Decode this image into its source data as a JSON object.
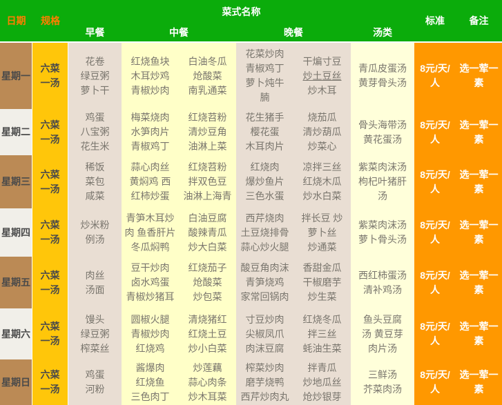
{
  "header": {
    "date": "日期",
    "spec": "规格",
    "dishes": "菜式名称",
    "meals": [
      "早餐",
      "中餐",
      "晚餐",
      "汤类"
    ],
    "standard": "标准",
    "remark": "备注"
  },
  "colors": {
    "header_green": "#0bac0b",
    "header_label_orange": "#ff7e00",
    "date_brown": "#bb8a55",
    "date_light": "#f1efe9",
    "spec_yellow": "#ffc60a",
    "beige_column": "#e9ded3",
    "pale_yellow_column": "#ffffc8",
    "soup_column": "#ffffda",
    "orange_column": "#ff9800",
    "dish_text": "#79756d"
  },
  "rows": [
    {
      "day": "星期一",
      "spec_lines": [
        "六菜",
        "一汤"
      ],
      "breakfast": [
        "花卷",
        "绿豆粥",
        "萝卜干"
      ],
      "lunch1": [
        "红烧鱼块",
        "木耳炒鸡",
        "青椒炒肉"
      ],
      "lunch2": [
        "白油冬瓜",
        "炝酸菜",
        "南乳通菜"
      ],
      "dinner1": [
        "花菜炒肉",
        "青椒鸡丁",
        "萝卜炖牛",
        "腩"
      ],
      "dinner2": [
        "干煸寸豆",
        {
          "t": "炒土豆丝",
          "u": true
        },
        "炒木耳"
      ],
      "soup": [
        "青瓜皮蛋汤",
        "黄芽骨头汤"
      ],
      "standard": "8元/天/人",
      "remark": "选一荤一素"
    },
    {
      "day": "星期二",
      "spec_lines": [
        "六菜",
        "一汤"
      ],
      "breakfast": [
        "鸡蛋",
        "八宝粥",
        "花生米"
      ],
      "lunch1": [
        "梅菜烧肉",
        "水笋肉片",
        "青椒鸡丁"
      ],
      "lunch2": [
        "红烧苕粉",
        "清炒豆角",
        "油淋上菜"
      ],
      "dinner1": [
        "花生猪手",
        "樱花蛋",
        "木耳肉片"
      ],
      "dinner2": [
        "烧茄瓜",
        "清炒葫瓜",
        "炒菜心"
      ],
      "soup": [
        "骨头海带汤",
        "黄花蛋汤"
      ],
      "standard": "8元/天/人",
      "remark": "选一荤一素"
    },
    {
      "day": "星期三",
      "spec_lines": [
        "六菜",
        "一汤"
      ],
      "breakfast": [
        "稀饭",
        "菜包",
        "咸菜"
      ],
      "lunch1": [
        "蒜心肉丝",
        "黄焖鸡 西",
        "红柿炒蛋"
      ],
      "lunch2": [
        "红烧苕粉",
        "拌双色豆",
        "油淋上海青"
      ],
      "dinner1": [
        "红烧肉",
        "爆炒鱼片",
        "三色水蛋"
      ],
      "dinner2": [
        "凉拌三丝",
        "红烧木瓜",
        "炒水白菜"
      ],
      "soup": [
        "紫菜肉沫汤",
        "枸杞叶猪肝",
        "汤"
      ],
      "standard": "8元/天/人",
      "remark": "选一荤一素"
    },
    {
      "day": "星期四",
      "spec_lines": [
        "六菜",
        "一汤"
      ],
      "breakfast": [
        "炒米粉",
        "例汤"
      ],
      "lunch1": [
        "青笋木耳炒",
        "肉 鱼香肝片",
        "冬瓜焖鸭"
      ],
      "lunch2": [
        "白油豆腐",
        "酸辣青瓜",
        "炒大白菜"
      ],
      "dinner1": [
        "西芹烧肉",
        "土豆烧排骨",
        "蒜心炒火腿"
      ],
      "dinner2": [
        "拌长豆 炒",
        "萝卜丝",
        "炒通菜"
      ],
      "soup": [
        "紫菜肉沫汤",
        "萝卜骨头汤"
      ],
      "standard": "8元/天/人",
      "remark": "选一荤一素"
    },
    {
      "day": "星期五",
      "spec_lines": [
        "六菜",
        "一汤"
      ],
      "breakfast": [
        "肉丝",
        "汤面"
      ],
      "lunch1": [
        "豆干炒肉",
        "卤水鸡蛋",
        "青椒炒猪耳"
      ],
      "lunch2": [
        "红烧茄子",
        "炝酸菜",
        "炒包菜"
      ],
      "dinner1": [
        "酸豆角肉沫",
        "青笋烧鸡",
        "家常回锅肉"
      ],
      "dinner2": [
        "香甜金瓜",
        "干椒磨芋",
        "炒生菜"
      ],
      "soup": [
        "西红柿蛋汤",
        "清补鸡汤"
      ],
      "standard": "8元/天/人",
      "remark": "选一荤一素"
    },
    {
      "day": "星期六",
      "spec_lines": [
        "六菜",
        "一汤"
      ],
      "breakfast": [
        "馒头",
        "绿豆粥",
        "榨菜丝"
      ],
      "lunch1": [
        "圆椒火腿",
        "青椒炒肉",
        "红烧鸡"
      ],
      "lunch2": [
        "清烧猪红",
        "红烧土豆",
        "炒小白菜"
      ],
      "dinner1": [
        "寸豆炒肉",
        "尖椒凤爪",
        "肉沫豆腐"
      ],
      "dinner2": [
        "红烧冬瓜",
        "拌三丝",
        "蚝油生菜"
      ],
      "soup": [
        "鱼头豆腐",
        "汤 黄豆芽",
        "肉片汤"
      ],
      "standard": "8元/天/人",
      "remark": "选一荤一素"
    },
    {
      "day": "星期日",
      "spec_lines": [
        "六菜",
        "一汤"
      ],
      "breakfast": [
        "鸡蛋",
        "河粉"
      ],
      "lunch1": [
        "酱爆肉",
        "红烧鱼",
        "三色肉丁"
      ],
      "lunch2": [
        "炒莲藕",
        "蒜心肉条",
        "炒木耳菜"
      ],
      "dinner1": [
        "榨菜炒肉",
        "磨芋烧鸭",
        "西芹炒肉丸"
      ],
      "dinner2": [
        "拌青瓜",
        "炒地瓜丝",
        "炝炒银芽"
      ],
      "soup": [
        "三鲜汤",
        "芥菜肉汤"
      ],
      "standard": "8元/天/人",
      "remark": "选一荤一素"
    }
  ]
}
